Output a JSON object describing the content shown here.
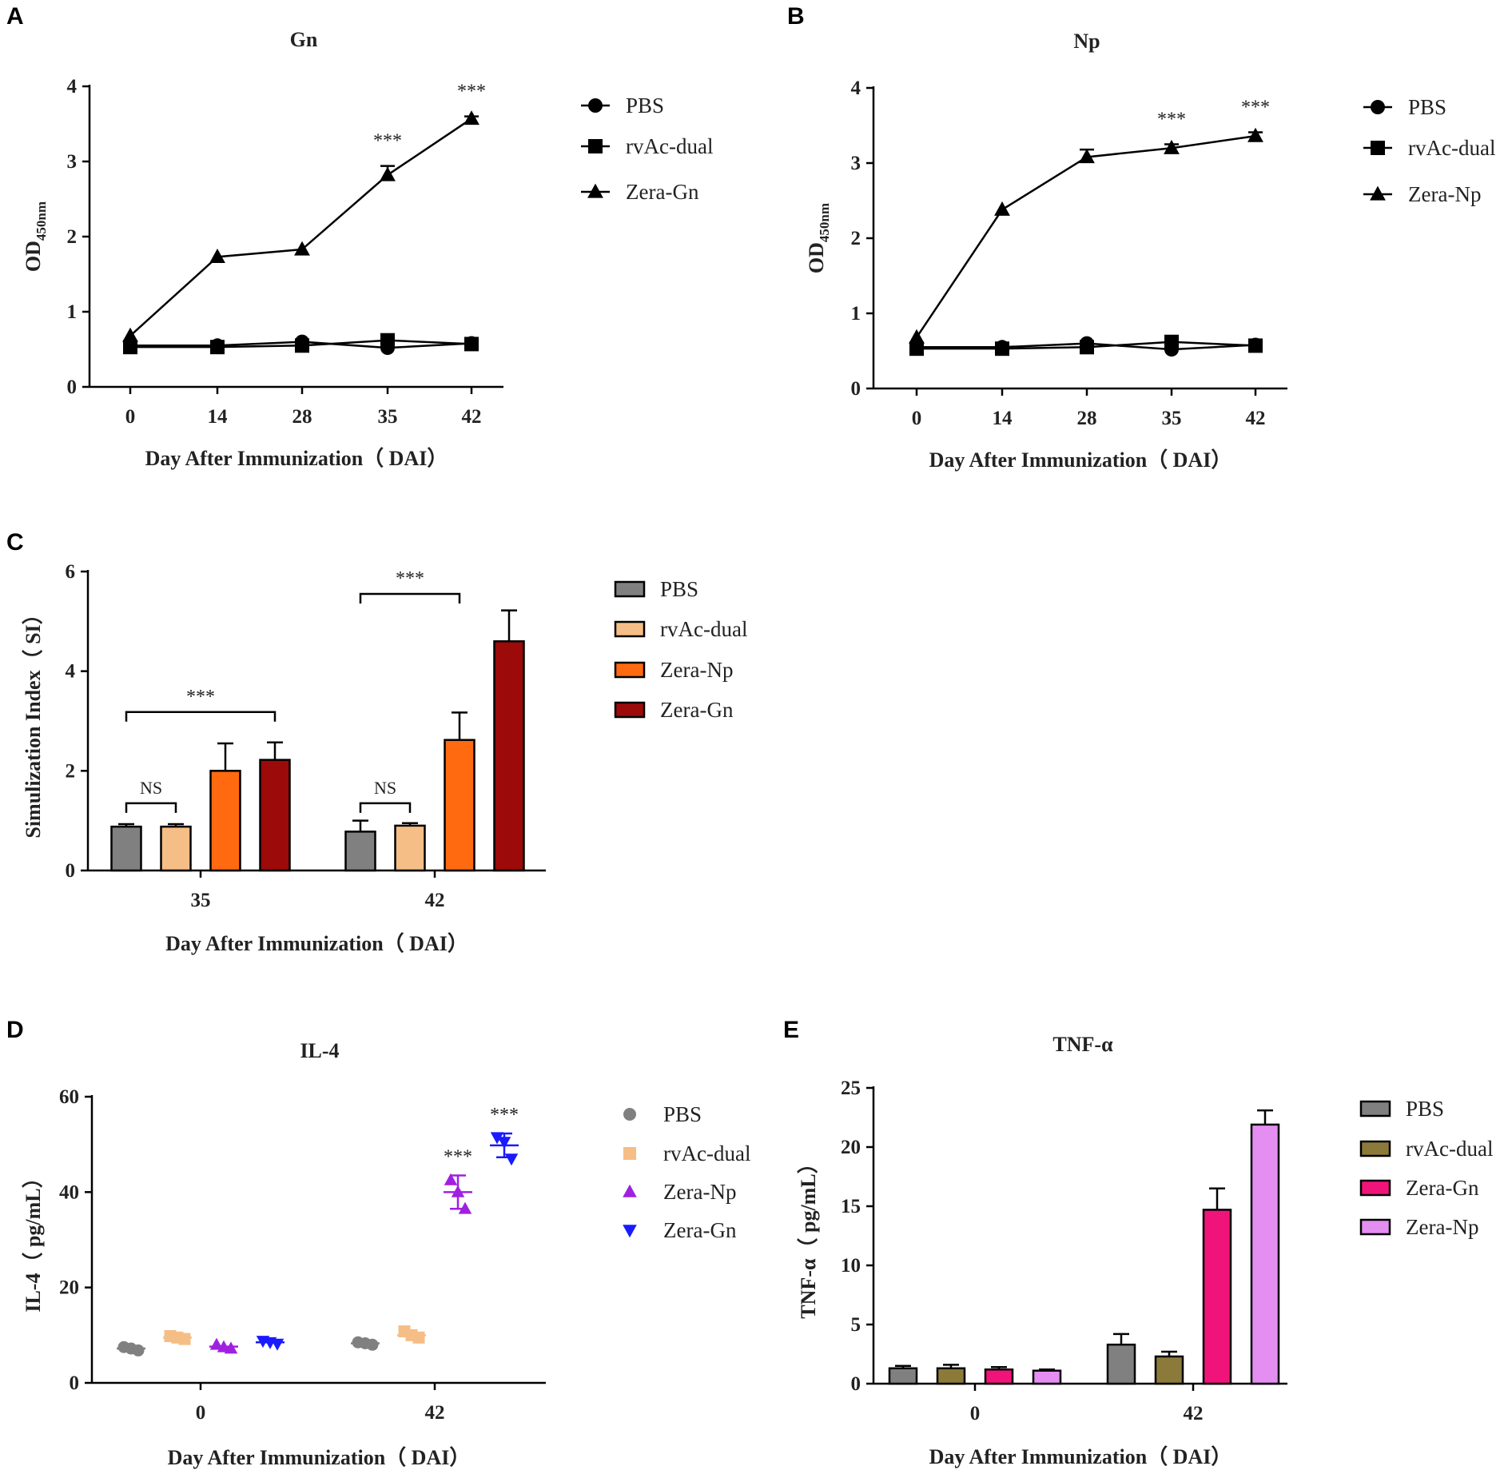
{
  "chart_data": [
    {
      "id": "A",
      "panel_label": "A",
      "type": "line",
      "title": "Gn",
      "xlabel": "Day After Immunization（ DAI）",
      "ylabel": "OD",
      "ylabel_sub": "450nm",
      "ylim": [
        0,
        4
      ],
      "yticks": [
        0,
        1,
        2,
        3,
        4
      ],
      "x": [
        0,
        14,
        28,
        35,
        42
      ],
      "series": [
        {
          "name": "PBS",
          "marker": "circle",
          "values": [
            0.55,
            0.55,
            0.6,
            0.52,
            0.58
          ],
          "err": [
            0,
            0,
            0,
            0,
            0
          ]
        },
        {
          "name": "rvAc-dual",
          "marker": "square",
          "values": [
            0.53,
            0.53,
            0.55,
            0.62,
            0.57
          ],
          "err": [
            0,
            0,
            0,
            0,
            0
          ]
        },
        {
          "name": "Zera-Gn",
          "marker": "triangle",
          "values": [
            0.68,
            1.73,
            1.83,
            2.82,
            3.57
          ],
          "err": [
            0,
            0,
            0,
            0.12,
            0.03
          ]
        }
      ],
      "annotations": [
        {
          "x": 35,
          "text": "***"
        },
        {
          "x": 42,
          "text": "***"
        }
      ]
    },
    {
      "id": "B",
      "panel_label": "B",
      "type": "line",
      "title": "Np",
      "xlabel": "Day After Immunization（ DAI）",
      "ylabel": "OD",
      "ylabel_sub": "450nm",
      "ylim": [
        0,
        4
      ],
      "yticks": [
        0,
        1,
        2,
        3,
        4
      ],
      "x": [
        0,
        14,
        28,
        35,
        42
      ],
      "series": [
        {
          "name": "PBS",
          "marker": "circle",
          "values": [
            0.55,
            0.55,
            0.6,
            0.52,
            0.58
          ],
          "err": [
            0,
            0,
            0,
            0,
            0
          ]
        },
        {
          "name": "rvAc-dual",
          "marker": "square",
          "values": [
            0.53,
            0.53,
            0.55,
            0.62,
            0.57
          ],
          "err": [
            0,
            0,
            0,
            0,
            0
          ]
        },
        {
          "name": "Zera-Np",
          "marker": "triangle",
          "values": [
            0.68,
            2.38,
            3.08,
            3.2,
            3.36
          ],
          "err": [
            0,
            0,
            0.1,
            0.05,
            0.05
          ]
        }
      ],
      "annotations": [
        {
          "x": 35,
          "text": "***"
        },
        {
          "x": 42,
          "text": "***"
        }
      ]
    },
    {
      "id": "C",
      "panel_label": "C",
      "type": "bar",
      "title": "",
      "xlabel": "Day After Immunization（ DAI）",
      "ylabel": "Simulization Index（ SI）",
      "ylim": [
        0,
        6
      ],
      "yticks": [
        0,
        2,
        4,
        6
      ],
      "categories": [
        "35",
        "42"
      ],
      "series": [
        {
          "name": "PBS",
          "color": "#808080",
          "values": [
            0.88,
            0.78
          ],
          "err": [
            0.05,
            0.22
          ]
        },
        {
          "name": "rvAc-dual",
          "color": "#f5be86",
          "values": [
            0.88,
            0.9
          ],
          "err": [
            0.05,
            0.05
          ]
        },
        {
          "name": "Zera-Np",
          "color": "#ff6a10",
          "values": [
            2.0,
            2.62
          ],
          "err": [
            0.55,
            0.55
          ]
        },
        {
          "name": "Zera-Gn",
          "color": "#9c0a0a",
          "values": [
            2.22,
            4.6
          ],
          "err": [
            0.35,
            0.62
          ]
        }
      ],
      "brackets": [
        {
          "cat": 0,
          "from": 0,
          "to": 1,
          "level": 1.35,
          "text": "NS"
        },
        {
          "cat": 0,
          "from": 0,
          "to": 3,
          "level": 3.18,
          "text": "***"
        },
        {
          "cat": 1,
          "from": 0,
          "to": 1,
          "level": 1.35,
          "text": "NS"
        },
        {
          "cat": 1,
          "from": 0,
          "to": 2,
          "level": 5.55,
          "text": "***"
        }
      ]
    },
    {
      "id": "D",
      "panel_label": "D",
      "type": "scatter",
      "title": "IL-4",
      "xlabel": "Day After Immunization（ DAI）",
      "ylabel": "IL-4（ pg/mL）",
      "ylim": [
        0,
        60
      ],
      "yticks": [
        0,
        20,
        40,
        60
      ],
      "categories": [
        "0",
        "42"
      ],
      "series": [
        {
          "name": "PBS",
          "marker": "circle",
          "color": "#808080",
          "points": [
            [
              7.5,
              7.2,
              6.8
            ],
            [
              8.5,
              8.3,
              8.0
            ]
          ],
          "mean": [
            7.2,
            8.3
          ],
          "sd": [
            0,
            0
          ]
        },
        {
          "name": "rvAc-dual",
          "marker": "square",
          "color": "#f5be86",
          "points": [
            [
              9.8,
              9.5,
              9.2
            ],
            [
              10.8,
              10.0,
              9.5
            ]
          ],
          "mean": [
            9.5,
            10.0
          ],
          "sd": [
            0,
            0
          ]
        },
        {
          "name": "Zera-Np",
          "marker": "triangle-up",
          "color": "#a020e0",
          "points": [
            [
              8.0,
              7.5,
              7.2
            ],
            [
              42.5,
              40.0,
              36.5
            ]
          ],
          "mean": [
            7.6,
            40.0
          ],
          "sd": [
            0,
            3.5
          ]
        },
        {
          "name": "Zera-Gn",
          "marker": "triangle-down",
          "color": "#1a1aff",
          "points": [
            [
              8.8,
              8.5,
              8.2
            ],
            [
              51.5,
              50.5,
              47.0
            ]
          ],
          "mean": [
            8.5,
            49.8
          ],
          "sd": [
            0,
            2.5
          ]
        }
      ],
      "annotations": [
        {
          "cat": 1,
          "series": 2,
          "text": "***"
        },
        {
          "cat": 1,
          "series": 3,
          "text": "***"
        }
      ]
    },
    {
      "id": "E",
      "panel_label": "E",
      "type": "bar",
      "title": "TNF-α",
      "xlabel": "Day After Immunization（ DAI）",
      "ylabel": "TNF-α（ pg/mL）",
      "ylim": [
        0,
        25
      ],
      "yticks": [
        0,
        5,
        10,
        15,
        20,
        25
      ],
      "categories": [
        "0",
        "42"
      ],
      "series": [
        {
          "name": "PBS",
          "color": "#808080",
          "values": [
            1.3,
            3.3
          ],
          "err": [
            0.2,
            0.9
          ]
        },
        {
          "name": "rvAc-dual",
          "color": "#8b7a3a",
          "values": [
            1.3,
            2.3
          ],
          "err": [
            0.3,
            0.4
          ]
        },
        {
          "name": "Zera-Gn",
          "color": "#f0147a",
          "values": [
            1.2,
            14.7
          ],
          "err": [
            0.2,
            1.8
          ]
        },
        {
          "name": "Zera-Np",
          "color": "#e38ef0",
          "values": [
            1.1,
            21.9
          ],
          "err": [
            0.1,
            1.2
          ]
        }
      ]
    }
  ]
}
